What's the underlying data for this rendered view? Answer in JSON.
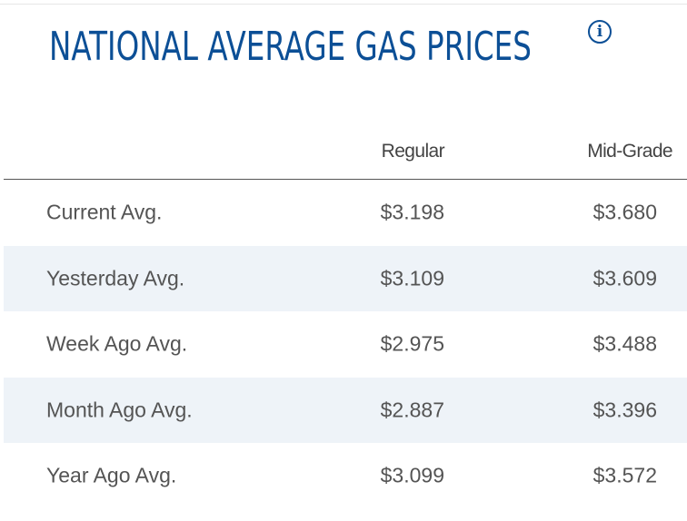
{
  "title": "NATIONAL AVERAGE GAS PRICES",
  "info_icon": "info-icon",
  "columns": {
    "label": "",
    "regular": "Regular",
    "mid_grade": "Mid-Grade"
  },
  "rows": [
    {
      "label": "Current Avg.",
      "regular": "$3.198",
      "mid_grade": "$3.680"
    },
    {
      "label": "Yesterday Avg.",
      "regular": "$3.109",
      "mid_grade": "$3.609"
    },
    {
      "label": "Week Ago Avg.",
      "regular": "$2.975",
      "mid_grade": "$3.488"
    },
    {
      "label": "Month Ago Avg.",
      "regular": "$2.887",
      "mid_grade": "$3.396"
    },
    {
      "label": "Year Ago Avg.",
      "regular": "$3.099",
      "mid_grade": "$3.572"
    }
  ],
  "colors": {
    "title": "#0c4f96",
    "row_shade": "#eef3f8",
    "text": "#545454"
  }
}
